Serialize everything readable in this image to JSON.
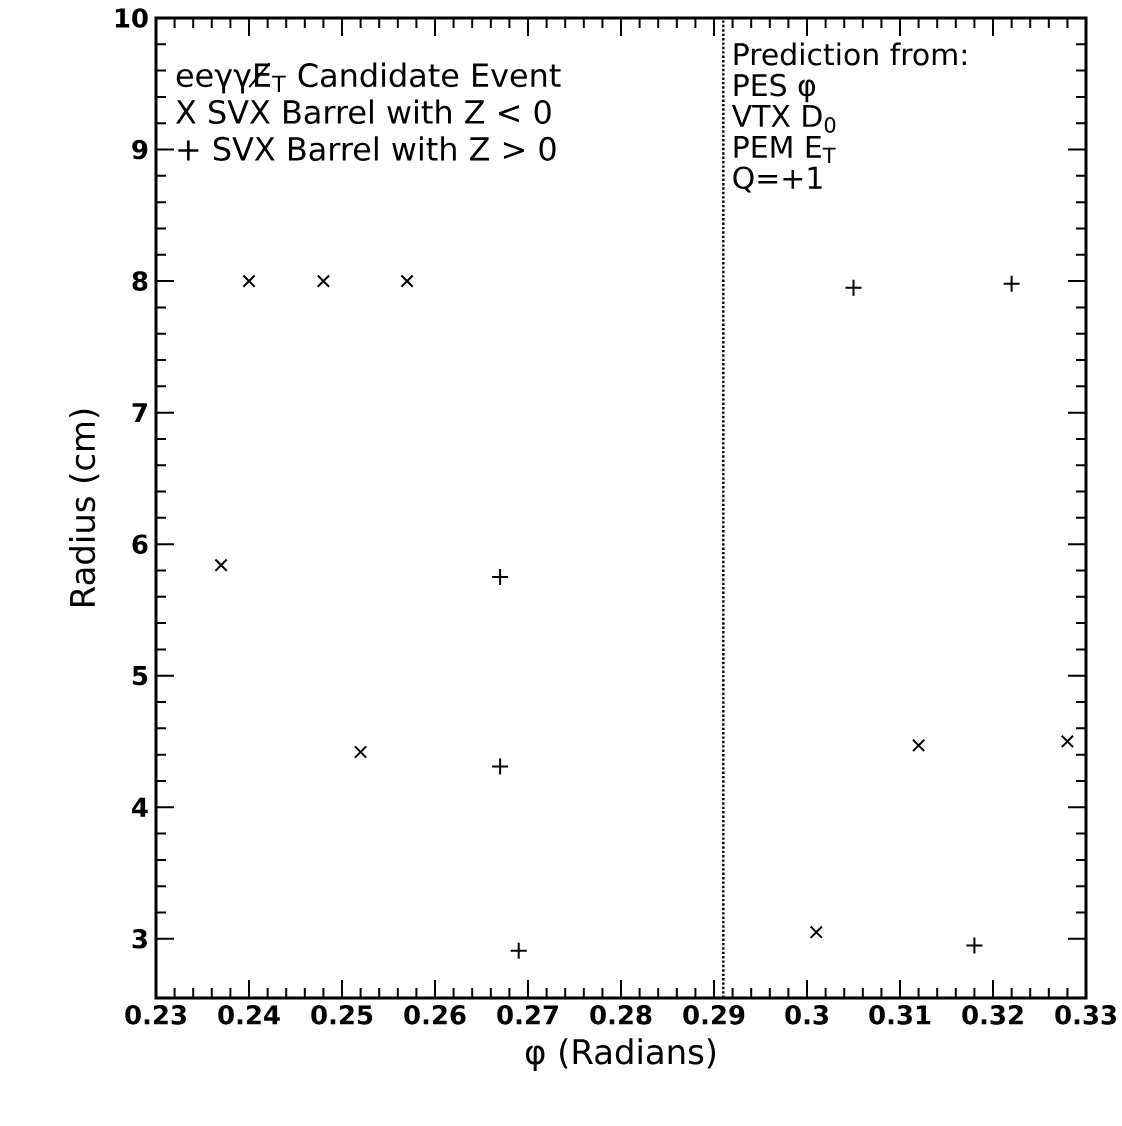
{
  "chart_data": {
    "type": "scatter",
    "xlabel": "φ (Radians)",
    "ylabel": "Radius (cm)",
    "xlim": [
      0.23,
      0.33
    ],
    "xticks": [
      0.23,
      0.24,
      0.25,
      0.26,
      0.27,
      0.28,
      0.29,
      0.3,
      0.31,
      0.32,
      0.33
    ],
    "ylim": [
      2.55,
      10
    ],
    "yticks": [
      3,
      4,
      5,
      6,
      7,
      8,
      9,
      10
    ],
    "grid": false,
    "series": [
      {
        "color": "#000000",
        "marker": "cross",
        "x": [
          0.24,
          0.248,
          0.257,
          0.237,
          0.252,
          0.301,
          0.312,
          0.328
        ],
        "values": [
          8.0,
          8.0,
          8.0,
          5.84,
          4.42,
          3.05,
          4.47,
          4.5
        ]
      },
      {
        "color": "#000000",
        "marker": "plus",
        "x": [
          0.267,
          0.267,
          0.269,
          0.305,
          0.322,
          0.318
        ],
        "values": [
          5.75,
          4.31,
          2.91,
          7.95,
          7.98,
          2.95
        ]
      }
    ],
    "ref_lines": [
      {
        "axis": "x",
        "value": 0.291,
        "line_style": "dotted"
      }
    ],
    "annotations": [
      "eeγγE̸$_{T}$ Candidate Event",
      "X SVX  Barrel with Z < 0",
      "+ SVX  Barrel with Z > 0",
      "Prediction from:",
      "PES φ",
      "VTX D$_{0}$",
      "PEM E$_{T}$",
      "Q=+1"
    ]
  }
}
